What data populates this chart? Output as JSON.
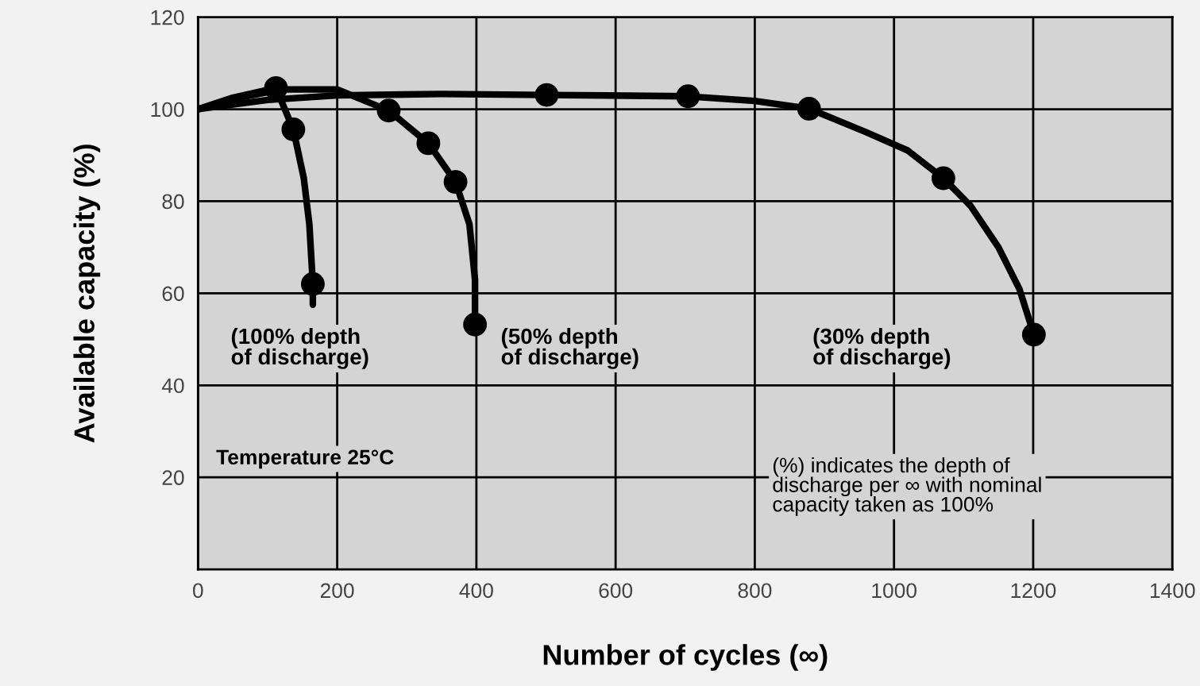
{
  "chart_data": {
    "type": "line",
    "xlabel": "Number of cycles (∞)",
    "ylabel": "Available capacity (%)",
    "xlim": [
      0,
      1400
    ],
    "xticks": [
      0,
      200,
      400,
      600,
      800,
      1000,
      1200,
      1400
    ],
    "ylim": [
      0,
      120
    ],
    "yticks": [
      20,
      40,
      60,
      80,
      100,
      120
    ],
    "grid": true,
    "legend": false,
    "series": [
      {
        "color": "#000000",
        "marker": "none",
        "x": [
          0,
          50,
          112,
          137,
          152,
          160,
          165,
          165
        ],
        "values": [
          100,
          102.5,
          104.6,
          95.6,
          85,
          75,
          62,
          57.5
        ]
      },
      {
        "type": "scatter",
        "color": "#000000",
        "marker": "circle",
        "x": [
          112,
          137,
          165
        ],
        "values": [
          104.6,
          95.6,
          62
        ]
      },
      {
        "color": "#000000",
        "marker": "none",
        "x": [
          0,
          60,
          120,
          200,
          274,
          331,
          370,
          390,
          398,
          398
        ],
        "values": [
          100,
          102.5,
          104.3,
          104.3,
          99.7,
          92.6,
          84.2,
          75,
          63,
          53.2
        ]
      },
      {
        "type": "scatter",
        "color": "#000000",
        "marker": "circle",
        "x": [
          274,
          331,
          370,
          398
        ],
        "values": [
          99.7,
          92.6,
          84.2,
          53.2
        ]
      },
      {
        "color": "#000000",
        "marker": "none",
        "x": [
          0,
          100,
          200,
          350,
          501,
          704,
          800,
          878,
          960,
          1020,
          1071,
          1110,
          1150,
          1180,
          1201
        ],
        "values": [
          100,
          102,
          103,
          103.3,
          103.1,
          102.8,
          101.8,
          100.1,
          95,
          91,
          85,
          79,
          70,
          61,
          51
        ]
      },
      {
        "type": "scatter",
        "color": "#000000",
        "marker": "circle",
        "x": [
          501,
          704,
          878,
          1071,
          1201
        ],
        "values": [
          103.1,
          102.8,
          100.1,
          85,
          51
        ]
      }
    ],
    "annotations": [
      "(100% depth\nof discharge)",
      "(50% depth\nof discharge)",
      "(30% depth\nof discharge)",
      "Temperature 25°C",
      "(%) indicates the depth of\ndischarge per ∞ with nominal\ncapacity taken as 100%"
    ]
  }
}
